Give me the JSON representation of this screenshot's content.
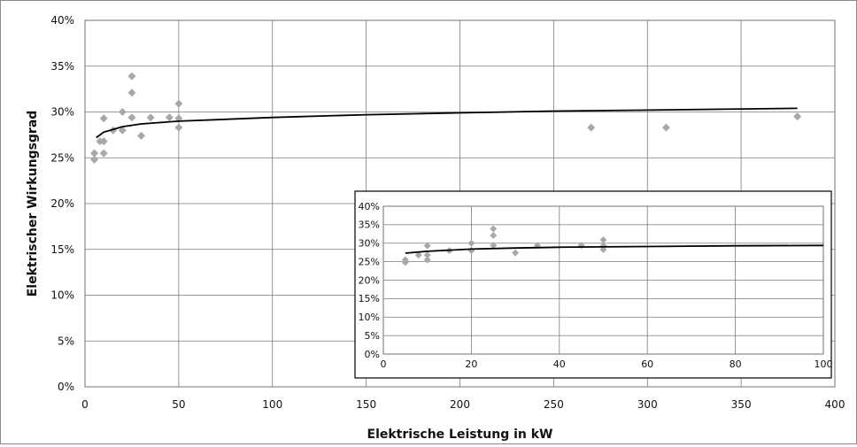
{
  "chart_data": [
    {
      "type": "scatter",
      "title": "",
      "xlabel": "Elektrische Leistung in kW",
      "ylabel": "Elektrischer Wirkungsgrad",
      "xlim": [
        0,
        400
      ],
      "ylim": [
        0,
        0.4
      ],
      "xticks": [
        "0",
        "50",
        "100",
        "150",
        "200",
        "250",
        "300",
        "350",
        "400"
      ],
      "yticks": [
        "0%",
        "5%",
        "10%",
        "15%",
        "20%",
        "25%",
        "30%",
        "35%",
        "40%"
      ],
      "grid": true,
      "marker_color": "#a8a8a8",
      "trend_color": "#000000",
      "points": [
        {
          "x": 5,
          "y": 0.248
        },
        {
          "x": 5,
          "y": 0.255
        },
        {
          "x": 8,
          "y": 0.268
        },
        {
          "x": 10,
          "y": 0.255
        },
        {
          "x": 10,
          "y": 0.268
        },
        {
          "x": 10,
          "y": 0.293
        },
        {
          "x": 15,
          "y": 0.28
        },
        {
          "x": 20,
          "y": 0.28
        },
        {
          "x": 20,
          "y": 0.3
        },
        {
          "x": 25,
          "y": 0.294
        },
        {
          "x": 25,
          "y": 0.321
        },
        {
          "x": 25,
          "y": 0.339
        },
        {
          "x": 30,
          "y": 0.274
        },
        {
          "x": 35,
          "y": 0.294
        },
        {
          "x": 45,
          "y": 0.294
        },
        {
          "x": 50,
          "y": 0.283
        },
        {
          "x": 50,
          "y": 0.293
        },
        {
          "x": 50,
          "y": 0.309
        },
        {
          "x": 270,
          "y": 0.283
        },
        {
          "x": 310,
          "y": 0.283
        },
        {
          "x": 380,
          "y": 0.295
        }
      ],
      "trendline": [
        {
          "x": 6,
          "y": 0.272
        },
        {
          "x": 10,
          "y": 0.278
        },
        {
          "x": 20,
          "y": 0.284
        },
        {
          "x": 30,
          "y": 0.287
        },
        {
          "x": 50,
          "y": 0.29
        },
        {
          "x": 100,
          "y": 0.294
        },
        {
          "x": 150,
          "y": 0.297
        },
        {
          "x": 200,
          "y": 0.299
        },
        {
          "x": 250,
          "y": 0.301
        },
        {
          "x": 300,
          "y": 0.302
        },
        {
          "x": 380,
          "y": 0.304
        }
      ]
    },
    {
      "type": "scatter",
      "title": "",
      "xlabel": "",
      "ylabel": "",
      "xlim": [
        0,
        100
      ],
      "ylim": [
        0,
        0.4
      ],
      "xticks": [
        "0",
        "20",
        "40",
        "60",
        "80",
        "100"
      ],
      "yticks": [
        "0%",
        "5%",
        "10%",
        "15%",
        "20%",
        "25%",
        "30%",
        "35%",
        "40%"
      ],
      "grid": true,
      "marker_color": "#a8a8a8",
      "trend_color": "#000000",
      "points": [
        {
          "x": 5,
          "y": 0.248
        },
        {
          "x": 5,
          "y": 0.255
        },
        {
          "x": 8,
          "y": 0.268
        },
        {
          "x": 10,
          "y": 0.255
        },
        {
          "x": 10,
          "y": 0.268
        },
        {
          "x": 10,
          "y": 0.293
        },
        {
          "x": 15,
          "y": 0.28
        },
        {
          "x": 20,
          "y": 0.28
        },
        {
          "x": 20,
          "y": 0.3
        },
        {
          "x": 25,
          "y": 0.321
        },
        {
          "x": 25,
          "y": 0.294
        },
        {
          "x": 25,
          "y": 0.339
        },
        {
          "x": 30,
          "y": 0.274
        },
        {
          "x": 35,
          "y": 0.294
        },
        {
          "x": 45,
          "y": 0.294
        },
        {
          "x": 50,
          "y": 0.283
        },
        {
          "x": 50,
          "y": 0.293
        },
        {
          "x": 50,
          "y": 0.309
        }
      ],
      "trendline": [
        {
          "x": 5,
          "y": 0.273
        },
        {
          "x": 10,
          "y": 0.278
        },
        {
          "x": 20,
          "y": 0.284
        },
        {
          "x": 30,
          "y": 0.287
        },
        {
          "x": 40,
          "y": 0.289
        },
        {
          "x": 50,
          "y": 0.29
        },
        {
          "x": 60,
          "y": 0.291
        },
        {
          "x": 80,
          "y": 0.293
        },
        {
          "x": 100,
          "y": 0.294
        }
      ]
    }
  ]
}
